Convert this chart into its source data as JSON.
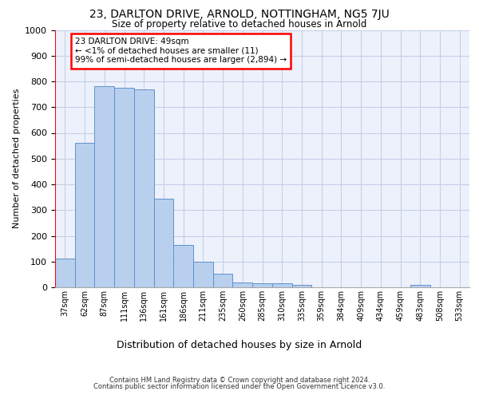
{
  "title_line1": "23, DARLTON DRIVE, ARNOLD, NOTTINGHAM, NG5 7JU",
  "title_line2": "Size of property relative to detached houses in Arnold",
  "xlabel": "Distribution of detached houses by size in Arnold",
  "ylabel": "Number of detached properties",
  "categories": [
    "37sqm",
    "62sqm",
    "87sqm",
    "111sqm",
    "136sqm",
    "161sqm",
    "186sqm",
    "211sqm",
    "235sqm",
    "260sqm",
    "285sqm",
    "310sqm",
    "335sqm",
    "359sqm",
    "384sqm",
    "409sqm",
    "434sqm",
    "459sqm",
    "483sqm",
    "508sqm",
    "533sqm"
  ],
  "values": [
    112,
    560,
    780,
    775,
    770,
    345,
    165,
    98,
    52,
    18,
    15,
    15,
    10,
    0,
    0,
    0,
    0,
    0,
    10,
    0,
    0
  ],
  "bar_color": "#b8d0ee",
  "bar_edge_color": "#6090cc",
  "annotation_line1": "23 DARLTON DRIVE: 49sqm",
  "annotation_line2": "← <1% of detached houses are smaller (11)",
  "annotation_line3": "99% of semi-detached houses are larger (2,894) →",
  "annotation_box_color": "white",
  "annotation_box_edge_color": "red",
  "vline_color": "red",
  "ylim": [
    0,
    1000
  ],
  "yticks": [
    0,
    100,
    200,
    300,
    400,
    500,
    600,
    700,
    800,
    900,
    1000
  ],
  "footer_line1": "Contains HM Land Registry data © Crown copyright and database right 2024.",
  "footer_line2": "Contains public sector information licensed under the Open Government Licence v3.0.",
  "plot_bg_color": "#edf1fb",
  "grid_color": "#c5cfe8",
  "fig_bg_color": "#ffffff"
}
